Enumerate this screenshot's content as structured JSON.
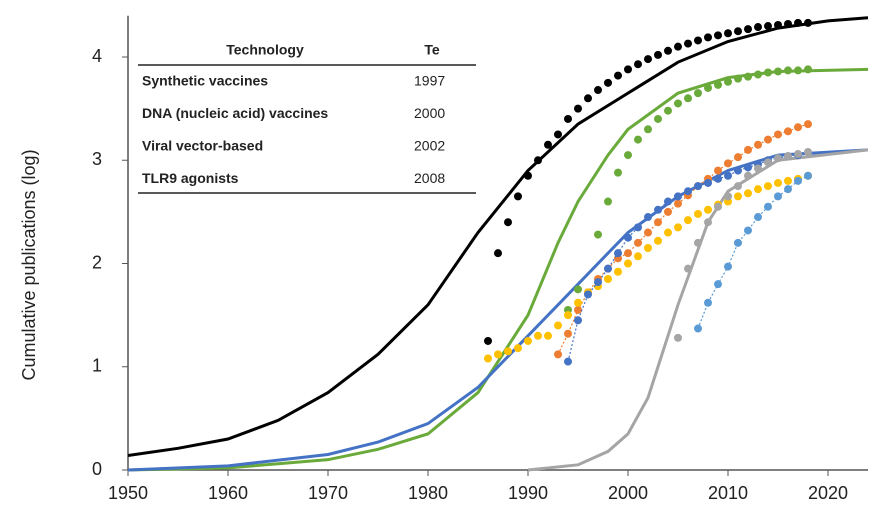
{
  "chart_data": {
    "type": "line",
    "ylabel": "Cumulative publications (log)",
    "xlim": [
      1950,
      2024
    ],
    "ylim": [
      0,
      4.4
    ],
    "xticks": [
      1950,
      1960,
      1970,
      1980,
      1990,
      2000,
      2010,
      2020
    ],
    "yticks": [
      0,
      1,
      2,
      3,
      4
    ],
    "series": [
      {
        "color": "#000000",
        "style": "line",
        "x": [
          1950,
          1955,
          1960,
          1965,
          1970,
          1975,
          1980,
          1985,
          1990,
          1995,
          2000,
          2005,
          2010,
          2015,
          2020,
          2024
        ],
        "values": [
          0.14,
          0.21,
          0.3,
          0.48,
          0.75,
          1.12,
          1.6,
          2.3,
          2.9,
          3.35,
          3.65,
          3.95,
          4.15,
          4.28,
          4.35,
          4.38
        ]
      },
      {
        "color": "#6aaa3a",
        "style": "line",
        "x": [
          1950,
          1960,
          1970,
          1975,
          1980,
          1985,
          1990,
          1993,
          1995,
          1998,
          2000,
          2005,
          2010,
          2015,
          2024
        ],
        "values": [
          0,
          0.02,
          0.1,
          0.2,
          0.35,
          0.75,
          1.5,
          2.2,
          2.6,
          3.05,
          3.3,
          3.65,
          3.8,
          3.86,
          3.88
        ]
      },
      {
        "color": "#4472c4",
        "style": "line",
        "x": [
          1950,
          1960,
          1970,
          1975,
          1980,
          1985,
          1990,
          1995,
          2000,
          2005,
          2010,
          2015,
          2024
        ],
        "values": [
          0,
          0.04,
          0.15,
          0.27,
          0.45,
          0.8,
          1.3,
          1.8,
          2.3,
          2.65,
          2.9,
          3.05,
          3.1
        ]
      },
      {
        "color": "#a5a5a5",
        "style": "line",
        "x": [
          1990,
          1995,
          1998,
          2000,
          2002,
          2003,
          2005,
          2008,
          2010,
          2015,
          2024
        ],
        "values": [
          0,
          0.05,
          0.18,
          0.35,
          0.7,
          1.0,
          1.6,
          2.4,
          2.7,
          3.0,
          3.1
        ]
      },
      {
        "color": "#000000",
        "style": "dots",
        "x": [
          1986,
          1987,
          1988,
          1989,
          1990,
          1991,
          1992,
          1993,
          1994,
          1995,
          1996,
          1997,
          1998,
          1999,
          2000,
          2001,
          2002,
          2003,
          2004,
          2005,
          2006,
          2007,
          2008,
          2009,
          2010,
          2011,
          2012,
          2013,
          2014,
          2015,
          2016,
          2017,
          2018
        ],
        "values": [
          1.25,
          2.1,
          2.4,
          2.65,
          2.85,
          3.0,
          3.15,
          3.25,
          3.4,
          3.5,
          3.6,
          3.68,
          3.75,
          3.82,
          3.88,
          3.93,
          3.98,
          4.02,
          4.06,
          4.1,
          4.13,
          4.16,
          4.19,
          4.21,
          4.23,
          4.25,
          4.27,
          4.29,
          4.3,
          4.31,
          4.32,
          4.33,
          4.33
        ]
      },
      {
        "color": "#6aaa3a",
        "style": "dots",
        "x": [
          1994,
          1995,
          1997,
          1998,
          1999,
          2000,
          2001,
          2002,
          2003,
          2004,
          2005,
          2006,
          2007,
          2008,
          2009,
          2010,
          2011,
          2012,
          2013,
          2014,
          2015,
          2016,
          2017,
          2018
        ],
        "values": [
          1.55,
          1.75,
          2.28,
          2.6,
          2.88,
          3.05,
          3.2,
          3.3,
          3.4,
          3.48,
          3.55,
          3.6,
          3.65,
          3.7,
          3.73,
          3.76,
          3.79,
          3.81,
          3.83,
          3.85,
          3.86,
          3.87,
          3.87,
          3.88
        ]
      },
      {
        "color": "#ed7d31",
        "style": "dots",
        "dash": true,
        "x": [
          1993,
          1994,
          1995,
          1996,
          1997,
          1998,
          1999,
          2000,
          2001,
          2002,
          2003,
          2004,
          2005,
          2006,
          2007,
          2008,
          2009,
          2010,
          2011,
          2012,
          2013,
          2014,
          2015,
          2016,
          2017,
          2018
        ],
        "values": [
          1.12,
          1.32,
          1.55,
          1.72,
          1.85,
          1.95,
          2.05,
          2.1,
          2.2,
          2.3,
          2.4,
          2.5,
          2.58,
          2.66,
          2.75,
          2.82,
          2.9,
          2.97,
          3.03,
          3.1,
          3.15,
          3.2,
          3.25,
          3.28,
          3.32,
          3.35
        ]
      },
      {
        "color": "#ffc000",
        "style": "dots",
        "x": [
          1986,
          1987,
          1988,
          1989,
          1990,
          1991,
          1992,
          1993,
          1994,
          1995,
          1996,
          1997,
          1998,
          1999,
          2000,
          2001,
          2002,
          2003,
          2004,
          2005,
          2006,
          2007,
          2008,
          2009,
          2010,
          2011,
          2012,
          2013,
          2014,
          2015,
          2016,
          2017,
          2018
        ],
        "values": [
          1.08,
          1.12,
          1.15,
          1.18,
          1.25,
          1.3,
          1.3,
          1.4,
          1.5,
          1.62,
          1.72,
          1.78,
          1.85,
          1.92,
          2.0,
          2.07,
          2.15,
          2.22,
          2.3,
          2.35,
          2.42,
          2.48,
          2.52,
          2.57,
          2.6,
          2.65,
          2.68,
          2.72,
          2.75,
          2.78,
          2.8,
          2.82,
          2.85
        ]
      },
      {
        "color": "#4472c4",
        "style": "dots",
        "dash": true,
        "x": [
          1994,
          1995,
          1996,
          1997,
          1998,
          1999,
          2000,
          2001,
          2002,
          2003,
          2004,
          2005,
          2006,
          2007,
          2008,
          2009,
          2010,
          2011,
          2012,
          2013,
          2014,
          2015,
          2016,
          2017
        ],
        "values": [
          1.05,
          1.45,
          1.7,
          1.82,
          1.95,
          2.1,
          2.25,
          2.35,
          2.45,
          2.52,
          2.6,
          2.65,
          2.7,
          2.75,
          2.78,
          2.82,
          2.85,
          2.9,
          2.93,
          2.96,
          3.0,
          3.02,
          3.04,
          3.05
        ]
      },
      {
        "color": "#a5a5a5",
        "style": "dots",
        "x": [
          2005,
          2006,
          2007,
          2008,
          2009,
          2010,
          2011,
          2012,
          2013,
          2014,
          2015,
          2016,
          2017,
          2018
        ],
        "values": [
          1.28,
          1.95,
          2.2,
          2.4,
          2.55,
          2.65,
          2.75,
          2.85,
          2.92,
          2.98,
          3.02,
          3.04,
          3.06,
          3.08
        ]
      },
      {
        "color": "#5b9bd5",
        "style": "dots",
        "dash": true,
        "x": [
          2007,
          2008,
          2009,
          2010,
          2011,
          2012,
          2013,
          2014,
          2015,
          2016,
          2017,
          2018
        ],
        "values": [
          1.37,
          1.62,
          1.8,
          1.97,
          2.2,
          2.32,
          2.45,
          2.55,
          2.65,
          2.72,
          2.8,
          2.85
        ]
      }
    ],
    "table": {
      "columns": [
        "Technology",
        "Te"
      ],
      "rows": [
        [
          "Synthetic vaccines",
          1997
        ],
        [
          "DNA (nucleic acid) vaccines",
          2000
        ],
        [
          "Viral vector-based",
          2002
        ],
        [
          "TLR9 agonists",
          2008
        ]
      ]
    }
  }
}
